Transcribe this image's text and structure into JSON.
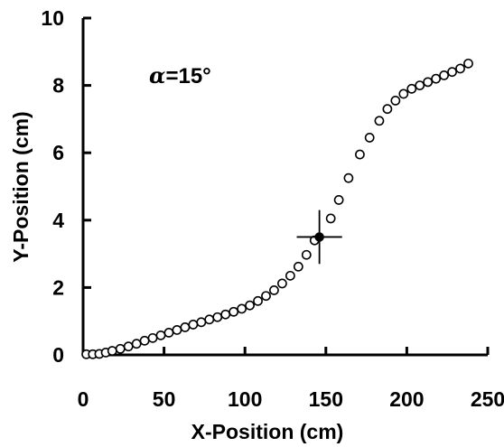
{
  "chart_data": {
    "type": "scatter",
    "xlabel": "X-Position (cm)",
    "ylabel": "Y-Position (cm)",
    "xlim": [
      0,
      250
    ],
    "ylim": [
      0,
      10
    ],
    "xticks": [
      0,
      50,
      100,
      150,
      200,
      250
    ],
    "yticks": [
      0,
      2,
      4,
      6,
      8,
      10
    ],
    "grid": false,
    "annotation": {
      "symbol": "α",
      "text": "=15°"
    },
    "series": [
      {
        "marker": "open-circle",
        "x": [
          2,
          6,
          10,
          14,
          18,
          23,
          28,
          33,
          38,
          43,
          48,
          53,
          58,
          63,
          68,
          73,
          78,
          83,
          88,
          93,
          98,
          103,
          108,
          113,
          118,
          123,
          128,
          133,
          138,
          143,
          153,
          158,
          164,
          171,
          177,
          183,
          188,
          193,
          198,
          203,
          208,
          213,
          218,
          223,
          228,
          233,
          238
        ],
        "y": [
          0.02,
          0.02,
          0.03,
          0.07,
          0.12,
          0.18,
          0.25,
          0.33,
          0.42,
          0.5,
          0.58,
          0.66,
          0.74,
          0.82,
          0.9,
          0.97,
          1.05,
          1.12,
          1.2,
          1.28,
          1.37,
          1.47,
          1.6,
          1.75,
          1.92,
          2.12,
          2.35,
          2.62,
          2.97,
          3.4,
          4.05,
          4.6,
          5.25,
          5.95,
          6.45,
          6.95,
          7.3,
          7.55,
          7.75,
          7.9,
          8.0,
          8.1,
          8.2,
          8.3,
          8.4,
          8.5,
          8.65
        ]
      }
    ],
    "highlight": {
      "marker": "filled-circle",
      "x": 146,
      "y": 3.5,
      "x_error": 14,
      "y_error": 0.8
    }
  }
}
